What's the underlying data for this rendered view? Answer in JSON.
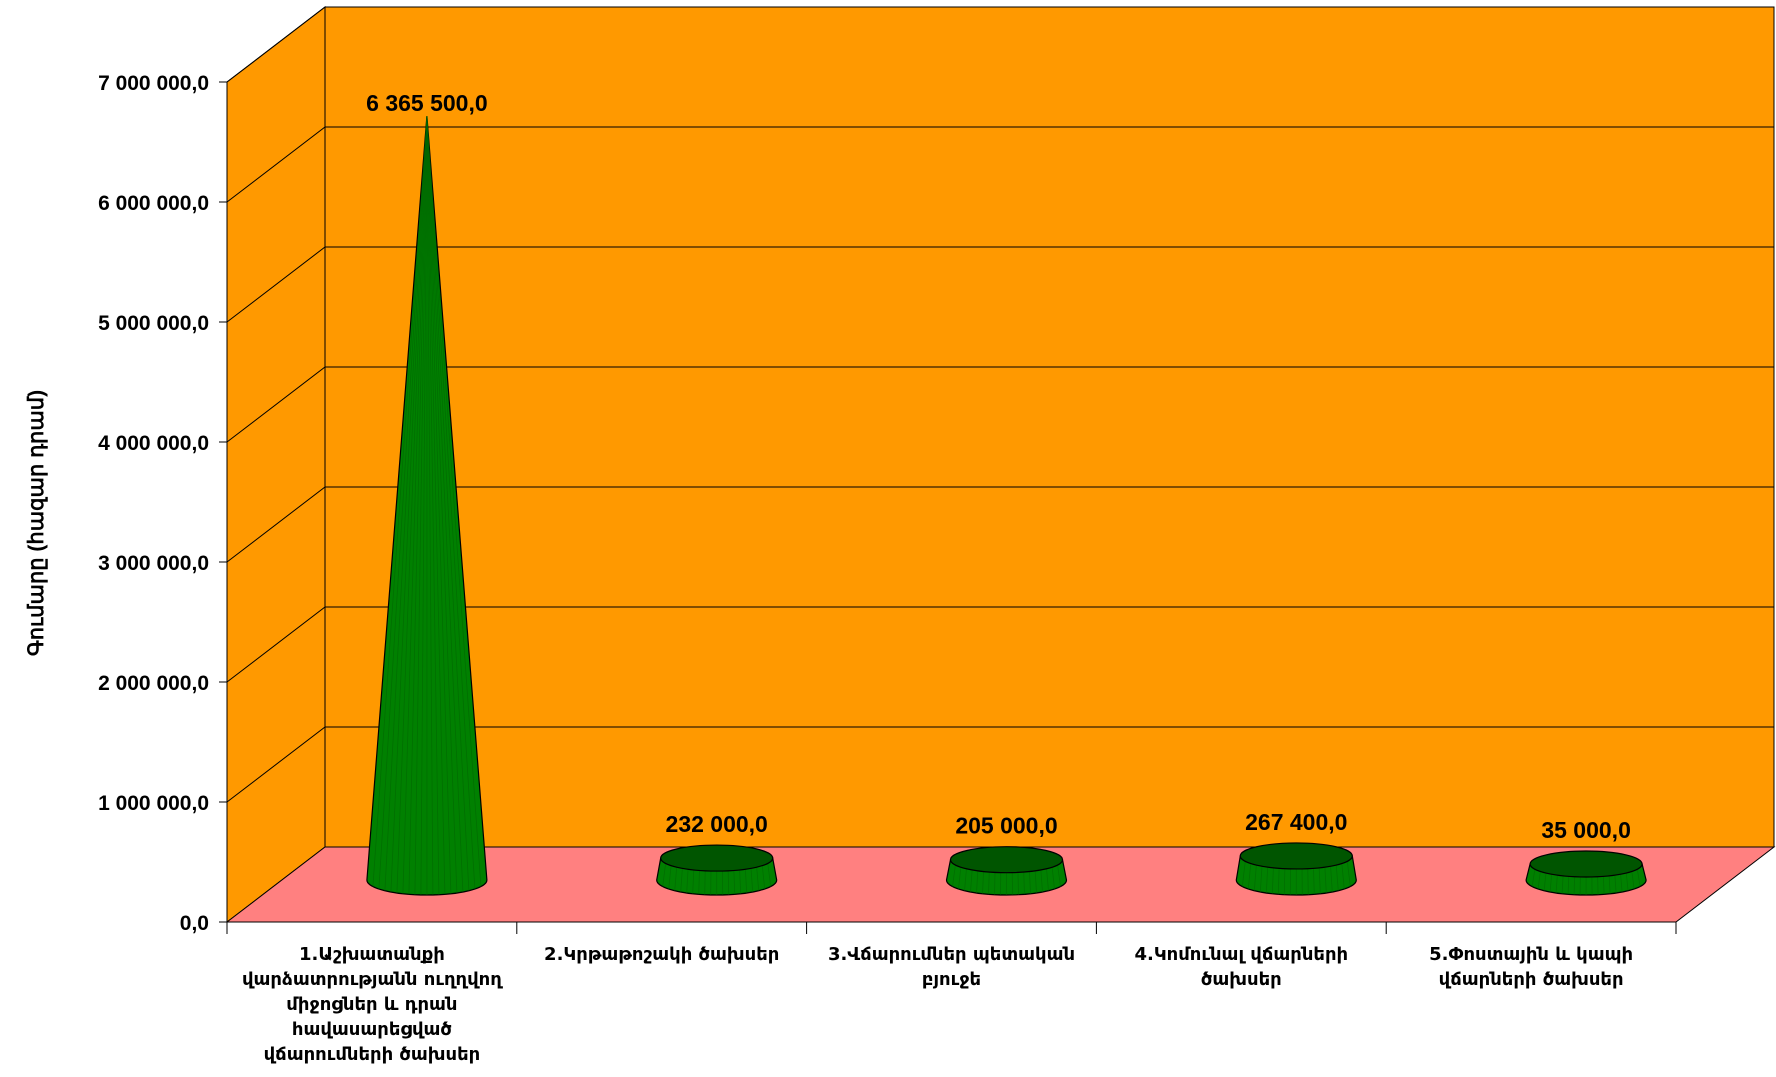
{
  "chart_data": {
    "type": "bar",
    "bar_shape": "3d-cone",
    "categories": [
      "1.Աշխատանքի վարձատրությանն ուղղվող միջոցներ և դրան հավասարեցված վճարումների ծախսեր",
      "2.Կրթաթոշակի ծախսեր",
      "3.Վճարումներ պետական բյուջե",
      "4.Կոմունալ վճարների ծախսեր",
      "5.Փոստային և կապի վճարների ծախսեր"
    ],
    "values": [
      6365500.0,
      232000.0,
      205000.0,
      267400.0,
      35000.0
    ],
    "data_labels": [
      "6 365 500,0",
      "232 000,0",
      "205 000,0",
      "267 400,0",
      "35 000,0"
    ],
    "ylabel": "Գումարը (հազար դրամ)",
    "ylim": [
      0,
      7000000
    ],
    "yticks": [
      0,
      1000000,
      2000000,
      3000000,
      4000000,
      5000000,
      6000000,
      7000000
    ],
    "ytick_labels": [
      "0,0",
      "1 000 000,0",
      "2 000 000,0",
      "3 000 000,0",
      "4 000 000,0",
      "5 000 000,0",
      "6 000 000,0",
      "7 000 000,0"
    ],
    "grid": true,
    "colors": {
      "wall": "#FF9900",
      "floor": "#FF8080",
      "bar": "#008000",
      "bar_dark": "#005500"
    }
  }
}
